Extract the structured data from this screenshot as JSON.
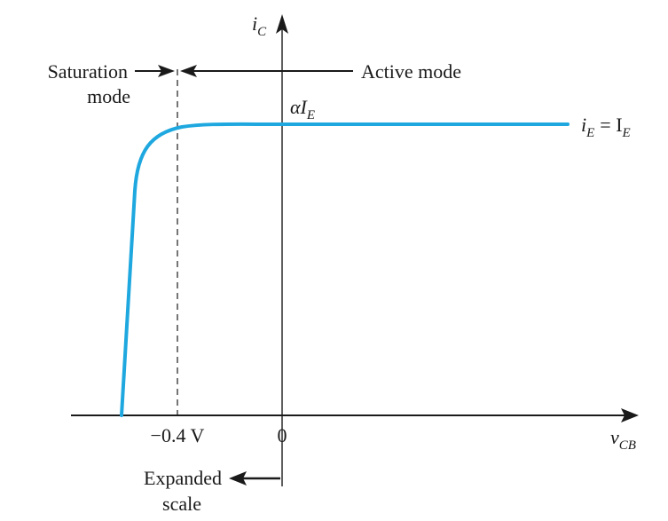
{
  "figure": {
    "colors": {
      "curve": "#1ea8df",
      "ink": "#1a1a1a"
    },
    "labels": {
      "saturation_line1": "Saturation",
      "saturation_line2": "mode",
      "active_mode": "Active mode",
      "alpha_ie_main": "αI",
      "alpha_ie_sub": "E",
      "curve_label_i": "i",
      "curve_label_i_sub": "E",
      "curve_label_eq": "= I",
      "curve_label_I_sub": "E",
      "y_axis_main": "i",
      "y_axis_sub": "C",
      "x_axis_main": "v",
      "x_axis_sub": "CB",
      "tick_neg": "−0.4 V",
      "tick_zero": "0",
      "expanded_line1": "Expanded",
      "expanded_line2": "scale"
    }
  }
}
